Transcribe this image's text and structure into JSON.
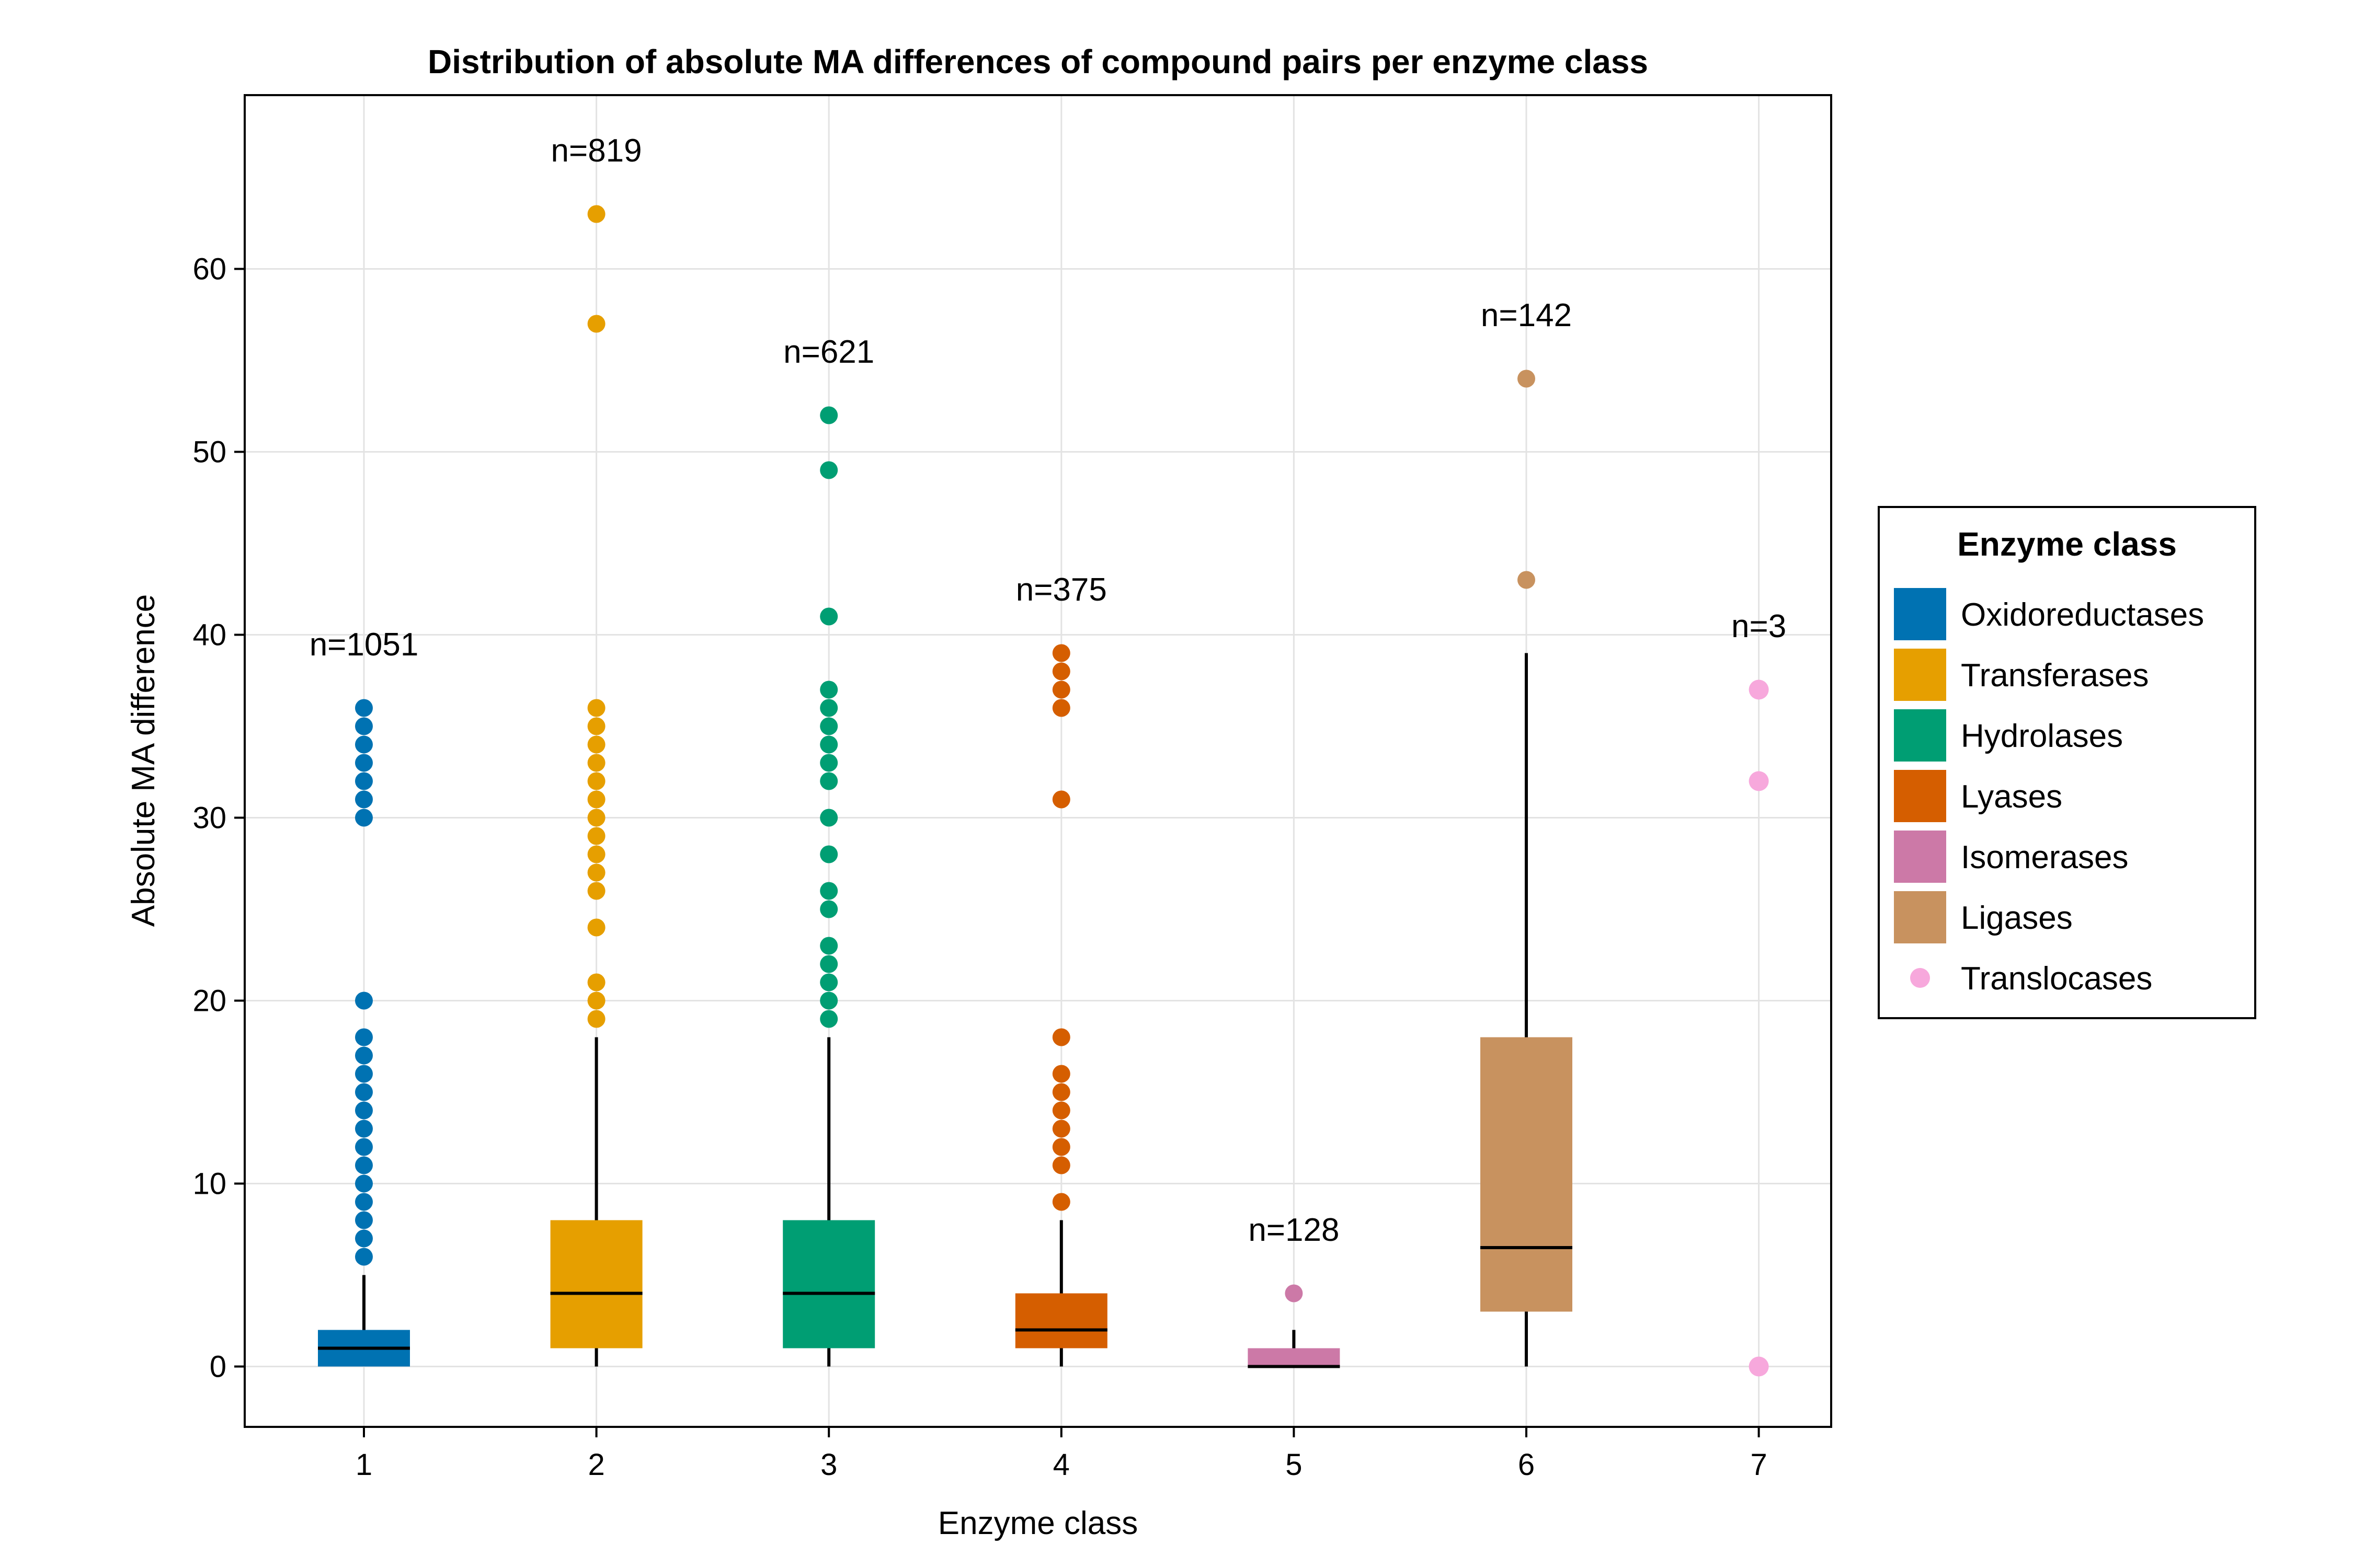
{
  "chart_data": {
    "type": "box",
    "title": "Distribution of absolute MA differences of compound pairs per enzyme class",
    "xlabel": "Enzyme class",
    "ylabel": "Absolute MA difference",
    "x_ticks": [
      "1",
      "2",
      "3",
      "4",
      "5",
      "6",
      "7"
    ],
    "y_ticks": [
      0,
      10,
      20,
      30,
      40,
      50,
      60
    ],
    "ylim": [
      -3.3,
      69.5
    ],
    "grid": true,
    "legend": {
      "title": "Enzyme class",
      "placement": "right",
      "entries": [
        {
          "label": "Oxidoreductases",
          "color": "#0072B2",
          "marker": "box"
        },
        {
          "label": "Transferases",
          "color": "#E69F00",
          "marker": "box"
        },
        {
          "label": "Hydrolases",
          "color": "#009E73",
          "marker": "box"
        },
        {
          "label": "Lyases",
          "color": "#D55E00",
          "marker": "box"
        },
        {
          "label": "Isomerases",
          "color": "#CC79A7",
          "marker": "box"
        },
        {
          "label": "Ligases",
          "color": "#C8925F",
          "marker": "box"
        },
        {
          "label": "Translocases",
          "color": "#F7A8DC",
          "marker": "point"
        }
      ]
    },
    "series": [
      {
        "name": "Oxidoreductases",
        "x": 1,
        "color": "#0072B2",
        "n_label": "n=1051",
        "n_y": 39.5,
        "box": {
          "q1": 0,
          "median": 1,
          "q3": 2,
          "whisker_low": 0,
          "whisker_high": 5
        },
        "outliers": [
          6,
          7,
          8,
          9,
          10,
          11,
          12,
          13,
          14,
          15,
          16,
          17,
          18,
          20,
          30,
          31,
          32,
          33,
          34,
          35,
          36
        ]
      },
      {
        "name": "Transferases",
        "x": 2,
        "color": "#E69F00",
        "n_label": "n=819",
        "n_y": 66.5,
        "box": {
          "q1": 1,
          "median": 4,
          "q3": 8,
          "whisker_low": 0,
          "whisker_high": 18
        },
        "outliers": [
          19,
          20,
          21,
          24,
          26,
          27,
          28,
          29,
          30,
          31,
          32,
          33,
          34,
          35,
          36,
          57,
          63
        ]
      },
      {
        "name": "Hydrolases",
        "x": 3,
        "color": "#009E73",
        "n_label": "n=621",
        "n_y": 55.5,
        "box": {
          "q1": 1,
          "median": 4,
          "q3": 8,
          "whisker_low": 0,
          "whisker_high": 18
        },
        "outliers": [
          19,
          20,
          21,
          22,
          23,
          25,
          26,
          28,
          30,
          32,
          33,
          34,
          35,
          36,
          37,
          41,
          49,
          52
        ]
      },
      {
        "name": "Lyases",
        "x": 4,
        "color": "#D55E00",
        "n_label": "n=375",
        "n_y": 42.5,
        "box": {
          "q1": 1,
          "median": 2,
          "q3": 4,
          "whisker_low": 0,
          "whisker_high": 8
        },
        "outliers": [
          9,
          11,
          12,
          13,
          14,
          15,
          16,
          18,
          31,
          36,
          37,
          38,
          39
        ]
      },
      {
        "name": "Isomerases",
        "x": 5,
        "color": "#CC79A7",
        "n_label": "n=128",
        "n_y": 7.5,
        "box": {
          "q1": 0,
          "median": 0,
          "q3": 1,
          "whisker_low": 0,
          "whisker_high": 2
        },
        "outliers": [
          4
        ]
      },
      {
        "name": "Ligases",
        "x": 6,
        "color": "#C8925F",
        "n_label": "n=142",
        "n_y": 57.5,
        "box": {
          "q1": 3,
          "median": 6.5,
          "q3": 18,
          "whisker_low": 0,
          "whisker_high": 39
        },
        "outliers": [
          43,
          54
        ]
      },
      {
        "name": "Translocases",
        "x": 7,
        "color": "#F7A8DC",
        "n_label": "n=3",
        "n_y": 40.5,
        "box": null,
        "points": [
          0,
          32,
          37
        ]
      }
    ]
  }
}
